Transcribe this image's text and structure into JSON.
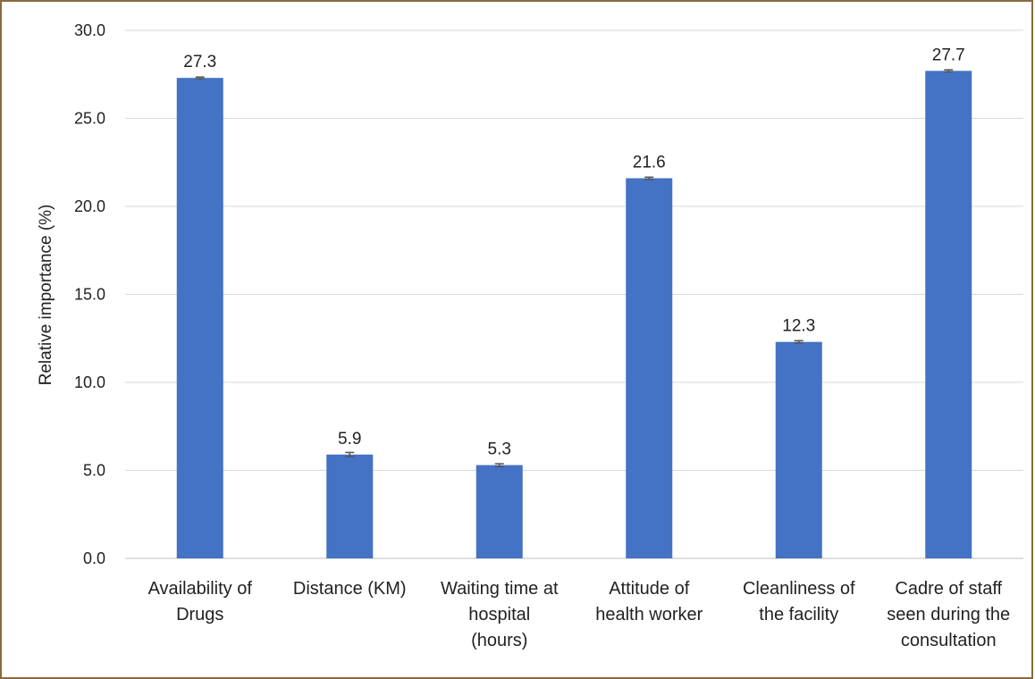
{
  "chart_data": {
    "type": "bar",
    "categories": [
      [
        "Availability of",
        "Drugs"
      ],
      [
        "Distance (KM)"
      ],
      [
        "Waiting time at",
        "hospital",
        "(hours)"
      ],
      [
        "Attitude of",
        "health worker"
      ],
      [
        "Cleanliness of",
        "the facility"
      ],
      [
        "Cadre of staff",
        "seen during the",
        "consultation"
      ]
    ],
    "values": [
      27.3,
      5.9,
      5.3,
      21.6,
      12.3,
      27.7
    ],
    "data_labels": [
      "27.3",
      "5.9",
      "5.3",
      "21.6",
      "12.3",
      "27.7"
    ],
    "error_bars": [
      0.05,
      0.12,
      0.08,
      0.06,
      0.07,
      0.06
    ],
    "ylabel": "Relative importance (%)",
    "ylim": [
      0,
      30
    ],
    "yticks": [
      "0.0",
      "5.0",
      "10.0",
      "15.0",
      "20.0",
      "25.0",
      "30.0"
    ],
    "grid": true,
    "bar_color": "#4472C4",
    "errorbar_color": "#555555"
  }
}
